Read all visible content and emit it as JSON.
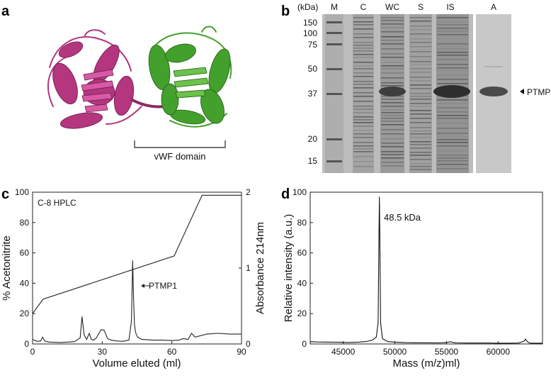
{
  "figure": {
    "panel_letters": {
      "a": "a",
      "b": "b",
      "c": "c",
      "d": "d"
    }
  },
  "panel_a": {
    "domain_label": "vWF domain",
    "colors": {
      "left_domain": "#b3367f",
      "right_domain": "#43a02c"
    }
  },
  "panel_b": {
    "unit_label": "(kDa)",
    "lane_labels": [
      "M",
      "C",
      "WC",
      "S",
      "IS",
      "A"
    ],
    "marker_labels": [
      "150",
      "100",
      "75",
      "50",
      "37",
      "20",
      "15"
    ],
    "band_annotation": "PTMP1"
  },
  "panel_c": {
    "annotation_method": "C-8 HPLC",
    "peak_label": "PTMP1",
    "chart_data": {
      "type": "line",
      "xlabel": "Volume eluted (ml)",
      "ylabel_left": "% Acetonitrite",
      "ylabel_right": "Absorbance 214nm",
      "x_ticks": [
        "0",
        "30",
        "60",
        "90"
      ],
      "y_left_ticks": [
        "0",
        "20",
        "40",
        "60",
        "80",
        "100"
      ],
      "y_right_ticks": [
        "0",
        "1",
        "2"
      ],
      "xlim": [
        0,
        90
      ],
      "ylim_left": [
        0,
        100
      ],
      "ylim_right": [
        0,
        2
      ],
      "series": [
        {
          "axis": "left",
          "x": [
            0,
            4.5,
            61,
            73,
            90
          ],
          "y": [
            20,
            29.5,
            58,
            98,
            98
          ]
        },
        {
          "axis": "right",
          "x": [
            0,
            2,
            3.5,
            4.3,
            5.2,
            7,
            12,
            18,
            20.5,
            21.3,
            22.2,
            23.3,
            24.4,
            25.3,
            26.3,
            27.5,
            29.5,
            30.8,
            32.3,
            33.8,
            36,
            39,
            41.5,
            42.6,
            43.1,
            43.5,
            43.9,
            44.4,
            45.2,
            47,
            52,
            56,
            60,
            63,
            65,
            67,
            68.5,
            70,
            75,
            80,
            85,
            90
          ],
          "y": [
            0.06,
            0.035,
            0.04,
            0.09,
            0.04,
            0.025,
            0.02,
            0.03,
            0.08,
            0.36,
            0.12,
            0.06,
            0.14,
            0.06,
            0.05,
            0.08,
            0.19,
            0.18,
            0.07,
            0.05,
            0.04,
            0.035,
            0.05,
            0.3,
            1.1,
            0.6,
            0.25,
            0.15,
            0.09,
            0.06,
            0.05,
            0.05,
            0.045,
            0.05,
            0.07,
            0.06,
            0.14,
            0.09,
            0.13,
            0.14,
            0.13,
            0.13
          ]
        }
      ]
    }
  },
  "panel_d": {
    "peak_label": "48.5 kDa",
    "chart_data": {
      "type": "line",
      "xlabel": "Mass (m/z)ml)",
      "ylabel": "Relative intensity (a.u.)",
      "x_ticks": [
        "45000",
        "50000",
        "55000",
        "60000"
      ],
      "y_ticks": [
        "0",
        "20",
        "40",
        "60",
        "80",
        "100"
      ],
      "xlim": [
        41800,
        64300
      ],
      "ylim": [
        0,
        100
      ],
      "series": [
        {
          "x": [
            41800,
            42500,
            43500,
            44500,
            45500,
            46500,
            47200,
            47800,
            48200,
            48380,
            48460,
            48500,
            48540,
            48620,
            48800,
            49300,
            50000,
            51000,
            52000,
            53000,
            54000,
            55000,
            55400,
            55700,
            56000,
            57000,
            58000,
            59000,
            60000,
            61000,
            62000,
            62500,
            62650,
            62800,
            63000,
            63300,
            64300
          ],
          "y": [
            1.5,
            1.3,
            1.2,
            1.1,
            1.0,
            1.2,
            1.6,
            2.5,
            4.5,
            14,
            72,
            97,
            72,
            14,
            3.5,
            1.6,
            1.2,
            0.9,
            0.8,
            0.8,
            0.7,
            0.9,
            1.5,
            0.9,
            0.7,
            0.6,
            0.6,
            0.6,
            0.5,
            0.5,
            0.6,
            1.8,
            3.2,
            1.8,
            0.7,
            0.5,
            0.5
          ]
        }
      ]
    }
  }
}
